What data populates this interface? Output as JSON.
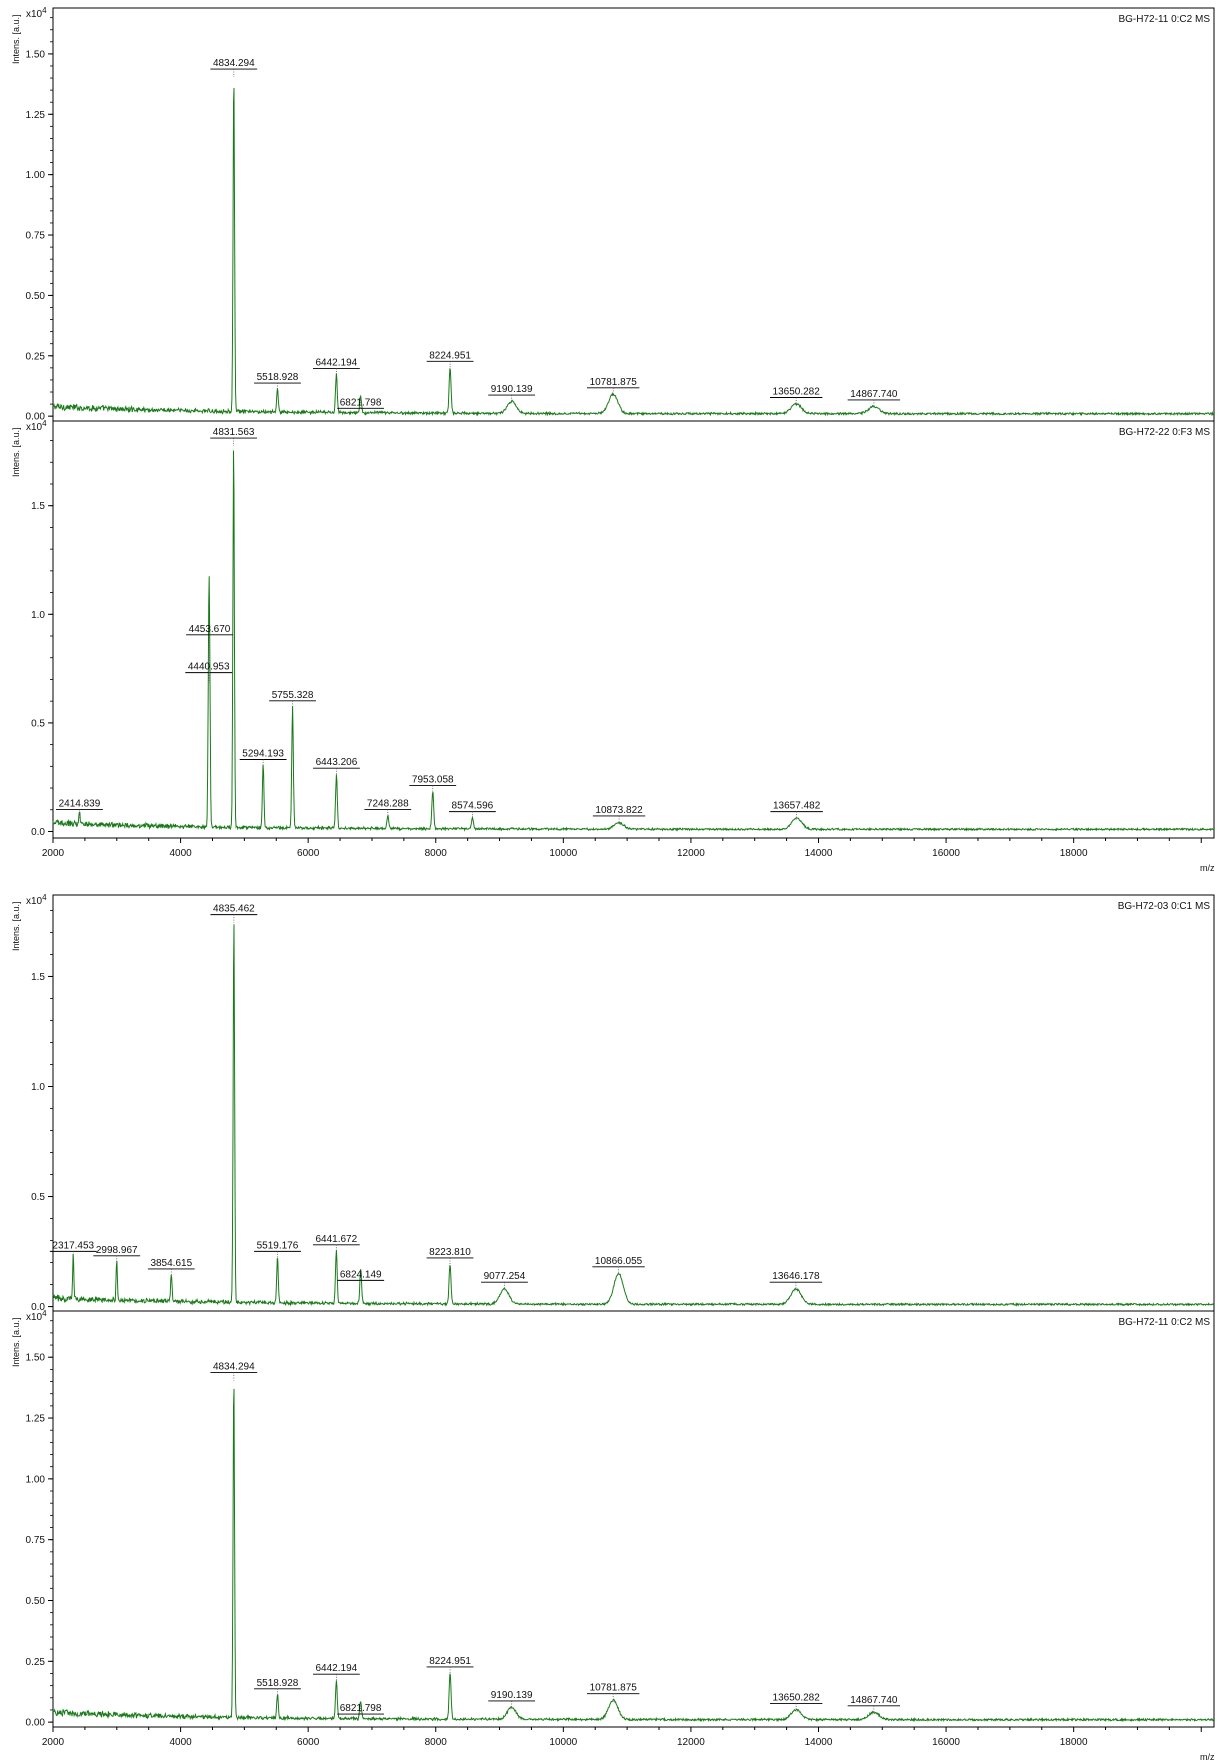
{
  "chart_data": [
    {
      "type": "line",
      "title": "BG-H72-11 0:C2 MS",
      "ylabel": "Intens. [a.u.]",
      "xlabel": "",
      "y_scale_label": "x10",
      "y_scale_exp": "4",
      "xlim": [
        2000,
        20200
      ],
      "ylim": [
        -0.02,
        1.69
      ],
      "yticks": [
        "0.00",
        "0.25",
        "0.50",
        "0.75",
        "1.00",
        "1.25",
        "1.50"
      ],
      "xticks": [],
      "color": "#1a7a1a",
      "peaks": [
        {
          "x": 4834.294,
          "y": 1.4,
          "label": "4834.294"
        },
        {
          "x": 5518.928,
          "y": 0.1,
          "label": "5518.928"
        },
        {
          "x": 6442.194,
          "y": 0.16,
          "label": "6442.194"
        },
        {
          "x": 6821.798,
          "y": 0.07,
          "label": "6821.798"
        },
        {
          "x": 8224.951,
          "y": 0.19,
          "label": "8224.951"
        },
        {
          "x": 9190.139,
          "y": 0.05,
          "label": "9190.139"
        },
        {
          "x": 10781.875,
          "y": 0.08,
          "label": "10781.875"
        },
        {
          "x": 13650.282,
          "y": 0.04,
          "label": "13650.282"
        },
        {
          "x": 14867.74,
          "y": 0.03,
          "label": "14867.740"
        }
      ]
    },
    {
      "type": "line",
      "title": "BG-H72-22 0:F3 MS",
      "ylabel": "Intens. [a.u.]",
      "xlabel": "m/z",
      "y_scale_label": "x10",
      "y_scale_exp": "4",
      "xlim": [
        2000,
        20200
      ],
      "ylim": [
        -0.03,
        1.89
      ],
      "yticks": [
        "0.0",
        "0.5",
        "1.0",
        "1.5"
      ],
      "xticks": [
        "2000",
        "4000",
        "6000",
        "8000",
        "10000",
        "12000",
        "14000",
        "16000",
        "18000"
      ],
      "color": "#1a7a1a",
      "peaks": [
        {
          "x": 2414.839,
          "y": 0.06,
          "label": "2414.839"
        },
        {
          "x": 4440.953,
          "y": 0.69,
          "label": "4440.953"
        },
        {
          "x": 4453.67,
          "y": 0.68,
          "label": "4453.670"
        },
        {
          "x": 4831.563,
          "y": 1.77,
          "label": "4831.563"
        },
        {
          "x": 5294.193,
          "y": 0.29,
          "label": "5294.193"
        },
        {
          "x": 5755.328,
          "y": 0.56,
          "label": "5755.328"
        },
        {
          "x": 6443.206,
          "y": 0.25,
          "label": "6443.206"
        },
        {
          "x": 7248.288,
          "y": 0.06,
          "label": "7248.288"
        },
        {
          "x": 7953.058,
          "y": 0.17,
          "label": "7953.058"
        },
        {
          "x": 8574.596,
          "y": 0.05,
          "label": "8574.596"
        },
        {
          "x": 10873.822,
          "y": 0.03,
          "label": "10873.822"
        },
        {
          "x": 13657.482,
          "y": 0.05,
          "label": "13657.482"
        }
      ]
    },
    {
      "type": "line",
      "title": "BG-H72-03 0:C1 MS",
      "ylabel": "Intens. [a.u.]",
      "xlabel": "",
      "y_scale_label": "x10",
      "y_scale_exp": "4",
      "xlim": [
        2000,
        20200
      ],
      "ylim": [
        -0.02,
        1.87
      ],
      "yticks": [
        "0.0",
        "0.5",
        "1.0",
        "1.5"
      ],
      "xticks": [],
      "color": "#1a7a1a",
      "peaks": [
        {
          "x": 2317.453,
          "y": 0.21,
          "label": "2317.453"
        },
        {
          "x": 2998.967,
          "y": 0.19,
          "label": "2998.967"
        },
        {
          "x": 3854.615,
          "y": 0.13,
          "label": "3854.615"
        },
        {
          "x": 4835.462,
          "y": 1.74,
          "label": "4835.462"
        },
        {
          "x": 5519.176,
          "y": 0.21,
          "label": "5519.176"
        },
        {
          "x": 6441.672,
          "y": 0.24,
          "label": "6441.672"
        },
        {
          "x": 6824.149,
          "y": 0.16,
          "label": "6824.149"
        },
        {
          "x": 8223.81,
          "y": 0.18,
          "label": "8223.810"
        },
        {
          "x": 9077.254,
          "y": 0.07,
          "label": "9077.254"
        },
        {
          "x": 10866.055,
          "y": 0.14,
          "label": "10866.055"
        },
        {
          "x": 13646.178,
          "y": 0.07,
          "label": "13646.178"
        }
      ]
    },
    {
      "type": "line",
      "title": "BG-H72-11 0:C2 MS",
      "ylabel": "Intens. [a.u.]",
      "xlabel": "m/z",
      "y_scale_label": "x10",
      "y_scale_exp": "4",
      "xlim": [
        2000,
        20200
      ],
      "ylim": [
        -0.02,
        1.69
      ],
      "yticks": [
        "0.00",
        "0.25",
        "0.50",
        "0.75",
        "1.00",
        "1.25",
        "1.50"
      ],
      "xticks": [
        "2000",
        "4000",
        "6000",
        "8000",
        "10000",
        "12000",
        "14000",
        "16000",
        "18000"
      ],
      "color": "#1a7a1a",
      "peaks": [
        {
          "x": 4834.294,
          "y": 1.4,
          "label": "4834.294"
        },
        {
          "x": 5518.928,
          "y": 0.1,
          "label": "5518.928"
        },
        {
          "x": 6442.194,
          "y": 0.16,
          "label": "6442.194"
        },
        {
          "x": 6821.798,
          "y": 0.07,
          "label": "6821.798"
        },
        {
          "x": 8224.951,
          "y": 0.19,
          "label": "8224.951"
        },
        {
          "x": 9190.139,
          "y": 0.05,
          "label": "9190.139"
        },
        {
          "x": 10781.875,
          "y": 0.08,
          "label": "10781.875"
        },
        {
          "x": 13650.282,
          "y": 0.04,
          "label": "13650.282"
        },
        {
          "x": 14867.74,
          "y": 0.03,
          "label": "14867.740"
        }
      ]
    }
  ]
}
